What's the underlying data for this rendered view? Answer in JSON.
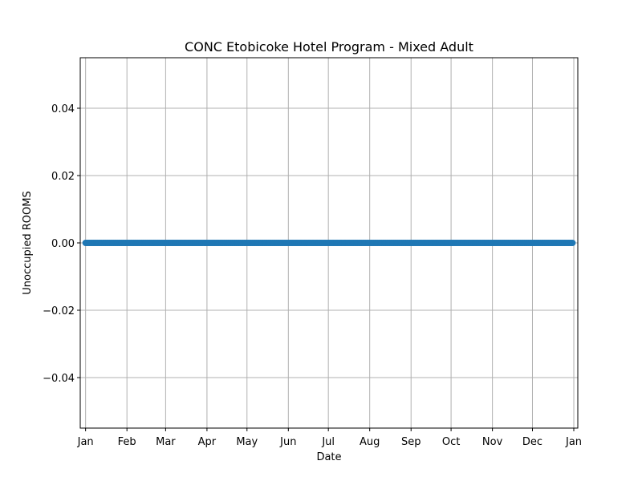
{
  "chart_data": {
    "type": "line",
    "title": "CONC Etobicoke Hotel Program - Mixed Adult",
    "xlabel": "Date",
    "ylabel": "Unoccupied ROOMS",
    "x_start": "2024-01-01",
    "x_end": "2024-12-31",
    "xlim": [
      "2023-12-28",
      "2025-01-04"
    ],
    "ylim": [
      -0.055,
      0.055
    ],
    "x_ticks": [
      {
        "date": "2024-01-01",
        "label": "Jan"
      },
      {
        "date": "2024-02-01",
        "label": "Feb"
      },
      {
        "date": "2024-03-01",
        "label": "Mar"
      },
      {
        "date": "2024-04-01",
        "label": "Apr"
      },
      {
        "date": "2024-05-01",
        "label": "May"
      },
      {
        "date": "2024-06-01",
        "label": "Jun"
      },
      {
        "date": "2024-07-01",
        "label": "Jul"
      },
      {
        "date": "2024-08-01",
        "label": "Aug"
      },
      {
        "date": "2024-09-01",
        "label": "Sep"
      },
      {
        "date": "2024-10-01",
        "label": "Oct"
      },
      {
        "date": "2024-11-01",
        "label": "Nov"
      },
      {
        "date": "2024-12-01",
        "label": "Dec"
      },
      {
        "date": "2025-01-01",
        "label": "Jan"
      }
    ],
    "y_ticks": [
      {
        "value": 0.04,
        "label": "0.04"
      },
      {
        "value": 0.02,
        "label": "0.02"
      },
      {
        "value": 0.0,
        "label": "0.00"
      },
      {
        "value": -0.02,
        "label": "−0.02"
      },
      {
        "value": -0.04,
        "label": "−0.04"
      }
    ],
    "series": [
      {
        "color": "#1f77b4",
        "marker": "circle",
        "y_value": 0
      }
    ],
    "grid": true,
    "legend": "none"
  }
}
